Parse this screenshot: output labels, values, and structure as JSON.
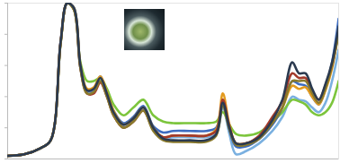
{
  "chart_data": {
    "type": "line",
    "x": [
      0,
      5,
      10,
      13,
      16,
      18,
      20,
      22,
      24,
      26,
      28,
      30,
      32,
      35,
      38,
      41,
      44,
      47,
      50,
      55,
      60,
      63,
      65,
      67,
      69,
      72,
      76,
      80,
      83,
      86,
      88,
      90,
      92,
      94,
      96,
      98,
      100
    ],
    "xlim": [
      0,
      100
    ],
    "ylim": [
      0,
      1
    ],
    "yticks": [
      0,
      0.2,
      0.4,
      0.6,
      0.8,
      1
    ],
    "tick_labels": false,
    "grid": false,
    "series": [
      {
        "color": "#7ab0e0",
        "values": [
          0.02,
          0.03,
          0.07,
          0.12,
          0.74,
          1.0,
          0.96,
          0.58,
          0.43,
          0.44,
          0.5,
          0.41,
          0.29,
          0.21,
          0.25,
          0.32,
          0.19,
          0.13,
          0.14,
          0.14,
          0.14,
          0.16,
          0.33,
          0.16,
          0.03,
          0.05,
          0.1,
          0.18,
          0.27,
          0.4,
          0.38,
          0.37,
          0.33,
          0.3,
          0.36,
          0.5,
          0.7
        ]
      },
      {
        "color": "#7cc53c",
        "values": [
          0.02,
          0.03,
          0.07,
          0.12,
          0.74,
          1.0,
          0.96,
          0.62,
          0.5,
          0.5,
          0.52,
          0.45,
          0.35,
          0.28,
          0.33,
          0.38,
          0.28,
          0.24,
          0.23,
          0.23,
          0.23,
          0.24,
          0.3,
          0.22,
          0.16,
          0.15,
          0.17,
          0.24,
          0.3,
          0.38,
          0.37,
          0.35,
          0.3,
          0.28,
          0.3,
          0.36,
          0.5
        ]
      },
      {
        "color": "#3d6cc0",
        "values": [
          0.02,
          0.03,
          0.07,
          0.12,
          0.75,
          1.0,
          0.97,
          0.59,
          0.44,
          0.45,
          0.53,
          0.42,
          0.31,
          0.23,
          0.27,
          0.34,
          0.21,
          0.17,
          0.18,
          0.18,
          0.18,
          0.2,
          0.37,
          0.19,
          0.08,
          0.08,
          0.13,
          0.22,
          0.33,
          0.5,
          0.48,
          0.47,
          0.4,
          0.35,
          0.45,
          0.62,
          0.9
        ]
      },
      {
        "color": "#e39b1f",
        "values": [
          0.02,
          0.03,
          0.07,
          0.12,
          0.74,
          1.0,
          0.97,
          0.6,
          0.45,
          0.46,
          0.53,
          0.43,
          0.31,
          0.22,
          0.26,
          0.33,
          0.2,
          0.14,
          0.15,
          0.15,
          0.15,
          0.19,
          0.42,
          0.22,
          0.1,
          0.1,
          0.14,
          0.24,
          0.33,
          0.47,
          0.45,
          0.46,
          0.4,
          0.35,
          0.44,
          0.58,
          0.84
        ]
      },
      {
        "color": "#a33a2a",
        "values": [
          0.02,
          0.03,
          0.07,
          0.12,
          0.75,
          1.0,
          0.96,
          0.58,
          0.42,
          0.42,
          0.49,
          0.4,
          0.28,
          0.2,
          0.24,
          0.31,
          0.19,
          0.14,
          0.15,
          0.15,
          0.15,
          0.18,
          0.38,
          0.21,
          0.1,
          0.1,
          0.15,
          0.27,
          0.37,
          0.55,
          0.52,
          0.52,
          0.44,
          0.38,
          0.47,
          0.6,
          0.82
        ]
      },
      {
        "color": "#8a7a2c",
        "values": [
          0.02,
          0.03,
          0.07,
          0.12,
          0.74,
          1.0,
          0.96,
          0.58,
          0.42,
          0.43,
          0.5,
          0.4,
          0.28,
          0.2,
          0.24,
          0.31,
          0.18,
          0.12,
          0.11,
          0.11,
          0.11,
          0.15,
          0.34,
          0.19,
          0.09,
          0.09,
          0.13,
          0.23,
          0.33,
          0.5,
          0.5,
          0.5,
          0.42,
          0.36,
          0.45,
          0.6,
          0.8
        ]
      },
      {
        "color": "#2b3a4f",
        "values": [
          0.02,
          0.03,
          0.07,
          0.12,
          0.75,
          1.0,
          0.97,
          0.6,
          0.44,
          0.45,
          0.52,
          0.42,
          0.3,
          0.22,
          0.26,
          0.33,
          0.2,
          0.13,
          0.12,
          0.12,
          0.12,
          0.16,
          0.36,
          0.2,
          0.1,
          0.1,
          0.14,
          0.25,
          0.38,
          0.62,
          0.55,
          0.55,
          0.45,
          0.38,
          0.48,
          0.62,
          0.85
        ]
      }
    ]
  }
}
